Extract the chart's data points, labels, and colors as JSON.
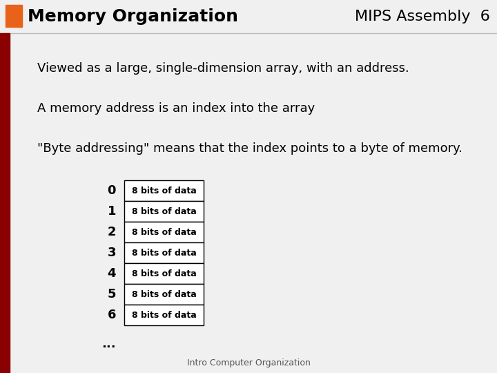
{
  "title": "Memory Organization",
  "subtitle": "MIPS Assembly  6",
  "line1": "Viewed as a large, single-dimension array, with an address.",
  "line2": "A memory address is an index into the array",
  "line3": "\"Byte addressing\" means that the index points to a byte of memory.",
  "footer": "Intro Computer Organization",
  "rows": [
    "0",
    "1",
    "2",
    "3",
    "4",
    "5",
    "6"
  ],
  "cell_label": "8 bits of data",
  "dots": "...",
  "title_color": "#000000",
  "orange_rect_color": "#e8621a",
  "dark_red_bar_color": "#8b0000",
  "header_bg": "#f0f0f0",
  "content_bg": "#e8e8e8",
  "cell_bg": "#ffffff",
  "title_fontsize": 18,
  "subtitle_fontsize": 16,
  "body_fontsize": 13,
  "cell_fontsize": 9,
  "row_label_fontsize": 13,
  "footer_fontsize": 9
}
